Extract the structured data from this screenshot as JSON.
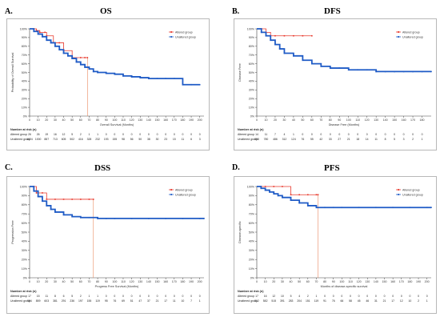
{
  "colors": {
    "altered": "#e8372b",
    "unaltered": "#1f5bc6",
    "axis": "#444444",
    "grid": "#cccccc"
  },
  "chart_data": [
    {
      "type": "line",
      "panel_label": "A.",
      "title": "OS",
      "xlabel": "Overall Survival (Months)",
      "ylabel": "Probability of Overall Survival",
      "xlim": [
        0,
        205
      ],
      "ylim": [
        0,
        100
      ],
      "xticks": [
        0,
        10,
        20,
        30,
        40,
        50,
        60,
        70,
        80,
        90,
        100,
        110,
        120,
        130,
        140,
        150,
        160,
        170,
        180,
        190,
        200
      ],
      "yticks": [
        0,
        10,
        20,
        30,
        40,
        50,
        60,
        70,
        80,
        90,
        100
      ],
      "yticklabels": [
        "0%",
        "10%",
        "20%",
        "30%",
        "40%",
        "50%",
        "60%",
        "70%",
        "80%",
        "90%",
        "100%"
      ],
      "legend": [
        "Altered group",
        "Unaltered group"
      ],
      "legend_position": "top-right",
      "series": [
        {
          "name": "Altered group",
          "x": [
            0,
            5,
            8,
            12,
            18,
            20,
            28,
            35,
            40,
            50,
            60,
            65,
            68
          ],
          "y": [
            100,
            100,
            98,
            96,
            96,
            92,
            84,
            84,
            75,
            67,
            67,
            67,
            67
          ]
        },
        {
          "name": "Unaltered group",
          "x": [
            0,
            5,
            10,
            15,
            20,
            25,
            30,
            35,
            40,
            45,
            50,
            55,
            60,
            65,
            70,
            75,
            80,
            90,
            100,
            110,
            120,
            130,
            140,
            150,
            160,
            170,
            180,
            190,
            200
          ],
          "y": [
            100,
            97,
            94,
            91,
            87,
            84,
            80,
            76,
            72,
            69,
            66,
            62,
            59,
            56,
            54,
            51,
            50,
            49,
            48,
            46,
            45,
            44,
            43,
            43,
            43,
            43,
            36,
            36,
            36
          ]
        }
      ],
      "median_line_x": 68,
      "risk_table_title": "Number at risk (n)",
      "risk_rows": [
        {
          "label": "Altered group",
          "values": [
            "26",
            "26",
            "19",
            "16",
            "12",
            "5",
            "2",
            "1",
            "1",
            "0",
            "0",
            "0",
            "0",
            "0",
            "0",
            "0",
            "0",
            "0",
            "0",
            "0",
            "0"
          ]
        },
        {
          "label": "Unaltered group",
          "values": [
            "1024",
            "1000",
            "887",
            "713",
            "605",
            "502",
            "416",
            "328",
            "232",
            "193",
            "155",
            "98",
            "56",
            "50",
            "38",
            "30",
            "23",
            "15",
            "11",
            "6",
            "3"
          ]
        }
      ]
    },
    {
      "type": "line",
      "panel_label": "B.",
      "title": "DFS",
      "xlabel": "Disease Free (Months)",
      "ylabel": "Disease Free",
      "xlim": [
        0,
        190
      ],
      "ylim": [
        0,
        100
      ],
      "xticks": [
        0,
        10,
        20,
        30,
        40,
        50,
        60,
        70,
        80,
        90,
        100,
        110,
        120,
        130,
        140,
        150,
        160,
        170,
        180
      ],
      "yticks": [
        0,
        10,
        20,
        30,
        40,
        50,
        60,
        70,
        80,
        90,
        100
      ],
      "yticklabels": [
        "0%",
        "10%",
        "20%",
        "30%",
        "40%",
        "50%",
        "60%",
        "70%",
        "80%",
        "90%",
        "100%"
      ],
      "legend": [
        "Altered group",
        "Unaltered group"
      ],
      "legend_position": "top-right",
      "series": [
        {
          "name": "Altered group",
          "x": [
            0,
            5,
            10,
            15,
            20,
            30,
            40,
            50,
            60
          ],
          "y": [
            100,
            100,
            96,
            92,
            92,
            92,
            92,
            92,
            92
          ]
        },
        {
          "name": "Unaltered group",
          "x": [
            0,
            5,
            10,
            15,
            20,
            25,
            30,
            40,
            50,
            60,
            70,
            80,
            90,
            100,
            110,
            120,
            130,
            140,
            150,
            160,
            170,
            180,
            190
          ],
          "y": [
            100,
            96,
            92,
            87,
            82,
            77,
            72,
            69,
            64,
            60,
            57,
            55,
            55,
            53,
            53,
            53,
            51,
            51,
            51,
            51,
            51,
            51,
            51
          ]
        }
      ],
      "median_line_x": null,
      "risk_table_title": "Number at risk (n)",
      "risk_rows": [
        {
          "label": "Altered group",
          "values": [
            "14",
            "11",
            "7",
            "4",
            "1",
            "0",
            "0",
            "0",
            "0",
            "0",
            "0",
            "0",
            "0",
            "0",
            "0",
            "0",
            "0",
            "0",
            "0"
          ]
        },
        {
          "label": "Unaltered group",
          "values": [
            "858",
            "780",
            "486",
            "312",
            "124",
            "76",
            "55",
            "42",
            "33",
            "27",
            "21",
            "18",
            "14",
            "11",
            "8",
            "5",
            "3",
            "2",
            "1"
          ]
        }
      ]
    },
    {
      "type": "line",
      "panel_label": "C.",
      "title": "DSS",
      "xlabel": "Progress Free Survival (Months)",
      "ylabel": "Progression Free",
      "xlim": [
        0,
        205
      ],
      "ylim": [
        0,
        100
      ],
      "xticks": [
        0,
        10,
        20,
        30,
        40,
        50,
        60,
        70,
        80,
        90,
        100,
        110,
        120,
        130,
        140,
        150,
        160,
        170,
        180,
        190,
        200
      ],
      "yticks": [
        0,
        10,
        20,
        30,
        40,
        50,
        60,
        70,
        80,
        90,
        100
      ],
      "yticklabels": [
        "0%",
        "10%",
        "20%",
        "30%",
        "40%",
        "50%",
        "60%",
        "70%",
        "80%",
        "90%",
        "100%"
      ],
      "legend": [
        "Altered group",
        "Unaltered group"
      ],
      "legend_position": "top-right",
      "series": [
        {
          "name": "Altered group",
          "x": [
            0,
            5,
            8,
            15,
            20,
            30,
            40,
            50,
            60,
            70,
            75
          ],
          "y": [
            100,
            100,
            93,
            93,
            86,
            86,
            86,
            86,
            86,
            86,
            86
          ]
        },
        {
          "name": "Unaltered group",
          "x": [
            0,
            5,
            10,
            15,
            20,
            25,
            30,
            40,
            50,
            60,
            70,
            80,
            90,
            100,
            120,
            140,
            160,
            180,
            200,
            205
          ],
          "y": [
            100,
            95,
            89,
            84,
            79,
            75,
            72,
            69,
            67,
            66,
            66,
            65,
            65,
            65,
            65,
            65,
            65,
            65,
            65,
            65
          ]
        }
      ],
      "median_line_x": 75,
      "risk_table_title": "Number at risk (n)",
      "risk_rows": [
        {
          "label": "Altered group",
          "values": [
            "17",
            "15",
            "11",
            "8",
            "6",
            "5",
            "2",
            "1",
            "1",
            "0",
            "0",
            "0",
            "0",
            "0",
            "0",
            "0",
            "0",
            "0",
            "0",
            "0",
            "0"
          ]
        },
        {
          "label": "Unaltered group",
          "values": [
            "984",
            "859",
            "603",
            "381",
            "291",
            "236",
            "197",
            "155",
            "119",
            "95",
            "76",
            "69",
            "51",
            "47",
            "37",
            "21",
            "17",
            "11",
            "10",
            "7",
            "1"
          ]
        }
      ]
    },
    {
      "type": "line",
      "panel_label": "D.",
      "title": "PFS",
      "xlabel": "Months of disease-specific survival",
      "ylabel": "Disease-specific",
      "xlim": [
        0,
        205
      ],
      "ylim": [
        0,
        100
      ],
      "xticks": [
        0,
        10,
        20,
        30,
        40,
        50,
        60,
        70,
        80,
        90,
        100,
        110,
        120,
        130,
        140,
        150,
        160,
        170,
        180,
        190,
        200
      ],
      "yticks": [
        0,
        10,
        20,
        30,
        40,
        50,
        60,
        70,
        80,
        90,
        100
      ],
      "yticklabels": [
        "0%",
        "10%",
        "20%",
        "30%",
        "40%",
        "50%",
        "60%",
        "70%",
        "80%",
        "90%",
        "100%"
      ],
      "legend": [
        "Altered group",
        "Unaltered group"
      ],
      "legend_position": "top-right",
      "series": [
        {
          "name": "Altered group",
          "x": [
            0,
            5,
            10,
            20,
            30,
            40,
            50,
            60,
            70,
            72
          ],
          "y": [
            100,
            100,
            100,
            100,
            100,
            91,
            91,
            91,
            91,
            91
          ]
        },
        {
          "name": "Unaltered group",
          "x": [
            0,
            5,
            10,
            15,
            20,
            25,
            30,
            40,
            50,
            60,
            70,
            80,
            90,
            100,
            120,
            140,
            160,
            180,
            200,
            205
          ],
          "y": [
            100,
            98,
            96,
            94,
            92,
            90,
            88,
            85,
            82,
            79,
            77,
            77,
            77,
            77,
            77,
            77,
            77,
            77,
            77,
            77
          ]
        }
      ],
      "median_line_x": 72,
      "risk_table_title": "Number at risk (n)",
      "risk_rows": [
        {
          "label": "Altered group",
          "values": [
            "17",
            "16",
            "12",
            "10",
            "5",
            "4",
            "2",
            "1",
            "0",
            "0",
            "0",
            "0",
            "0",
            "0",
            "0",
            "0",
            "0",
            "0",
            "0",
            "0",
            "0"
          ]
        },
        {
          "label": "Unaltered group",
          "values": [
            "812",
            "582",
            "515",
            "391",
            "283",
            "204",
            "151",
            "119",
            "91",
            "76",
            "66",
            "58",
            "45",
            "46",
            "31",
            "21",
            "17",
            "12",
            "10",
            "2",
            "1"
          ]
        }
      ]
    }
  ]
}
